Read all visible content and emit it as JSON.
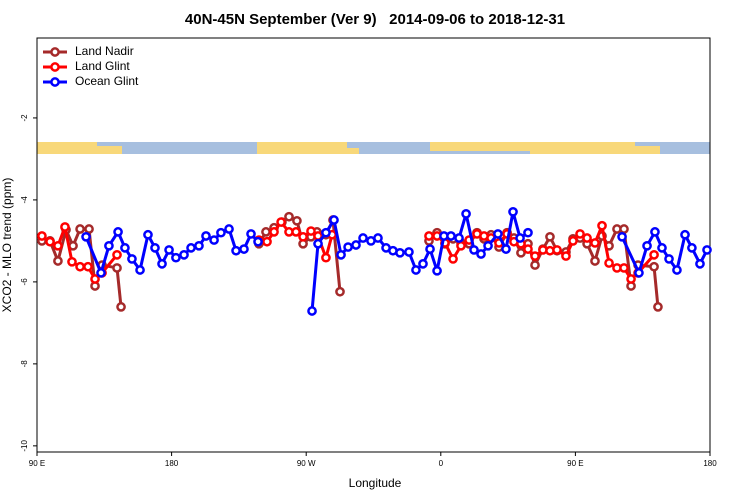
{
  "chart_data": {
    "type": "line",
    "title": "40N-45N September (Ver 9)   2014-09-06 to 2018-12-31",
    "x_label": "Longitude",
    "y_label": "XCO2 - MLO trend (ppm)",
    "xlim": [
      90,
      540
    ],
    "xticks": [
      {
        "value": 90,
        "label": "90 E"
      },
      {
        "value": 180,
        "label": "180"
      },
      {
        "value": 270,
        "label": "90 W"
      },
      {
        "value": 360,
        "label": "0"
      },
      {
        "value": 450,
        "label": "90 E"
      },
      {
        "value": 540,
        "label": "180"
      }
    ],
    "ylim": [
      -10.15,
      -0.05
    ],
    "yticks": [
      -2,
      -4,
      -6,
      -8,
      -10
    ],
    "legend": "top-left",
    "series": [
      {
        "name": "Land Nadir",
        "color": "#a52a2a",
        "x": [
          93.3,
          98.7,
          104.0,
          109.4,
          114.1,
          118.8,
          124.8,
          128.8,
          133.5,
          143.5,
          146.2,
          null,
          238.4,
          243.1,
          248.5,
          253.8,
          258.5,
          263.8,
          267.9,
          273.2,
          277.2,
          283.2,
          287.9,
          292.6,
          null,
          352.1,
          357.5,
          362.8,
          368.2,
          373.5,
          378.9,
          384.2,
          388.9,
          393.6,
          398.9,
          404.3,
          408.9,
          413.6,
          418.3,
          423.0,
          428.3,
          433.0,
          437.7,
          443.7,
          448.4,
          453.1,
          457.8,
          463.1,
          467.8,
          472.5,
          477.8,
          482.5,
          487.2,
          491.9,
          502.6,
          505.2
        ],
        "values": [
          -5.0,
          -5.0,
          -5.49,
          -4.73,
          -5.12,
          -4.71,
          -4.71,
          -6.1,
          -5.59,
          -5.66,
          -6.61,
          null,
          -5.07,
          -4.78,
          -4.68,
          -4.54,
          -4.41,
          -4.51,
          -5.07,
          -4.9,
          -4.78,
          -4.85,
          -4.49,
          -6.24,
          null,
          -5.0,
          -4.8,
          -5.07,
          -4.95,
          -5.05,
          -5.07,
          -4.8,
          -4.95,
          -4.85,
          -5.15,
          -4.8,
          -4.93,
          -5.29,
          -5.07,
          -5.59,
          -5.2,
          -4.9,
          -5.24,
          -5.27,
          -4.95,
          -4.93,
          -5.07,
          -5.49,
          -4.88,
          -5.12,
          -4.71,
          -4.71,
          -6.1,
          -5.59,
          -5.63,
          -6.61
        ]
      },
      {
        "name": "Land Glint",
        "color": "#ff0000",
        "x": [
          93.3,
          98.7,
          104.0,
          108.7,
          113.4,
          118.8,
          124.1,
          128.8,
          133.5,
          143.5,
          null,
          238.4,
          243.8,
          248.5,
          253.2,
          258.5,
          263.2,
          267.9,
          273.2,
          277.9,
          283.2,
          287.3,
          null,
          352.1,
          357.5,
          362.8,
          368.2,
          373.5,
          378.9,
          384.2,
          388.9,
          393.6,
          398.9,
          404.3,
          408.9,
          413.6,
          418.3,
          423.0,
          428.3,
          433.0,
          437.7,
          443.7,
          448.4,
          453.1,
          457.8,
          463.1,
          467.8,
          472.5,
          477.8,
          482.5,
          487.2,
          491.9,
          502.6
        ],
        "values": [
          -4.88,
          -5.02,
          -5.12,
          -4.66,
          -5.51,
          -5.63,
          -5.63,
          -5.93,
          -5.78,
          -5.34,
          null,
          -4.98,
          -5.02,
          -4.78,
          -4.54,
          -4.78,
          -4.78,
          -4.9,
          -4.76,
          -4.88,
          -5.41,
          -4.85,
          null,
          -4.88,
          -4.88,
          -5.05,
          -5.44,
          -5.12,
          -4.98,
          -4.83,
          -4.88,
          -4.93,
          -5.05,
          -4.83,
          -5.02,
          -5.07,
          -5.2,
          -5.37,
          -5.22,
          -5.24,
          -5.22,
          -5.37,
          -5.0,
          -4.83,
          -4.93,
          -5.05,
          -4.63,
          -5.54,
          -5.66,
          -5.66,
          -5.93,
          -5.78,
          -5.34
        ]
      },
      {
        "name": "Ocean Glint",
        "color": "#0000ff",
        "x": [
          122.8,
          132.8,
          138.1,
          144.2,
          148.8,
          153.5,
          158.9,
          164.2,
          168.9,
          173.6,
          178.3,
          182.9,
          188.3,
          193.0,
          198.3,
          203.0,
          208.4,
          213.0,
          218.4,
          223.1,
          228.4,
          233.1,
          237.8,
          null,
          273.9,
          277.9,
          283.2,
          288.6,
          293.3,
          298.0,
          303.3,
          308.0,
          313.3,
          318.0,
          323.4,
          328.0,
          332.7,
          338.7,
          343.4,
          348.1,
          352.8,
          357.5,
          362.1,
          366.8,
          372.2,
          376.9,
          382.2,
          386.9,
          391.6,
          398.2,
          403.6,
          408.3,
          413.0,
          418.3,
          null,
          481.2,
          492.5,
          497.9,
          503.2,
          507.9,
          512.6,
          517.9,
          523.3,
          527.9,
          533.3,
          538.0
        ],
        "values": [
          -4.9,
          -5.78,
          -5.12,
          -4.78,
          -5.17,
          -5.44,
          -5.71,
          -4.85,
          -5.17,
          -5.56,
          -5.22,
          -5.41,
          -5.34,
          -5.17,
          -5.12,
          -4.88,
          -4.98,
          -4.8,
          -4.71,
          -5.24,
          -5.2,
          -4.83,
          -5.02,
          null,
          -6.71,
          -5.07,
          -4.8,
          -4.49,
          -5.34,
          -5.15,
          -5.1,
          -4.93,
          -5.0,
          -4.93,
          -5.17,
          -5.24,
          -5.29,
          -5.27,
          -5.71,
          -5.56,
          -5.2,
          -5.73,
          -4.88,
          -4.88,
          -4.93,
          -4.34,
          -5.22,
          -5.32,
          -5.12,
          -4.83,
          -5.2,
          -4.29,
          -4.93,
          -4.8,
          null,
          -4.9,
          -5.78,
          -5.12,
          -4.78,
          -5.17,
          -5.44,
          -5.71,
          -4.85,
          -5.17,
          -5.56,
          -5.22
        ]
      }
    ]
  }
}
